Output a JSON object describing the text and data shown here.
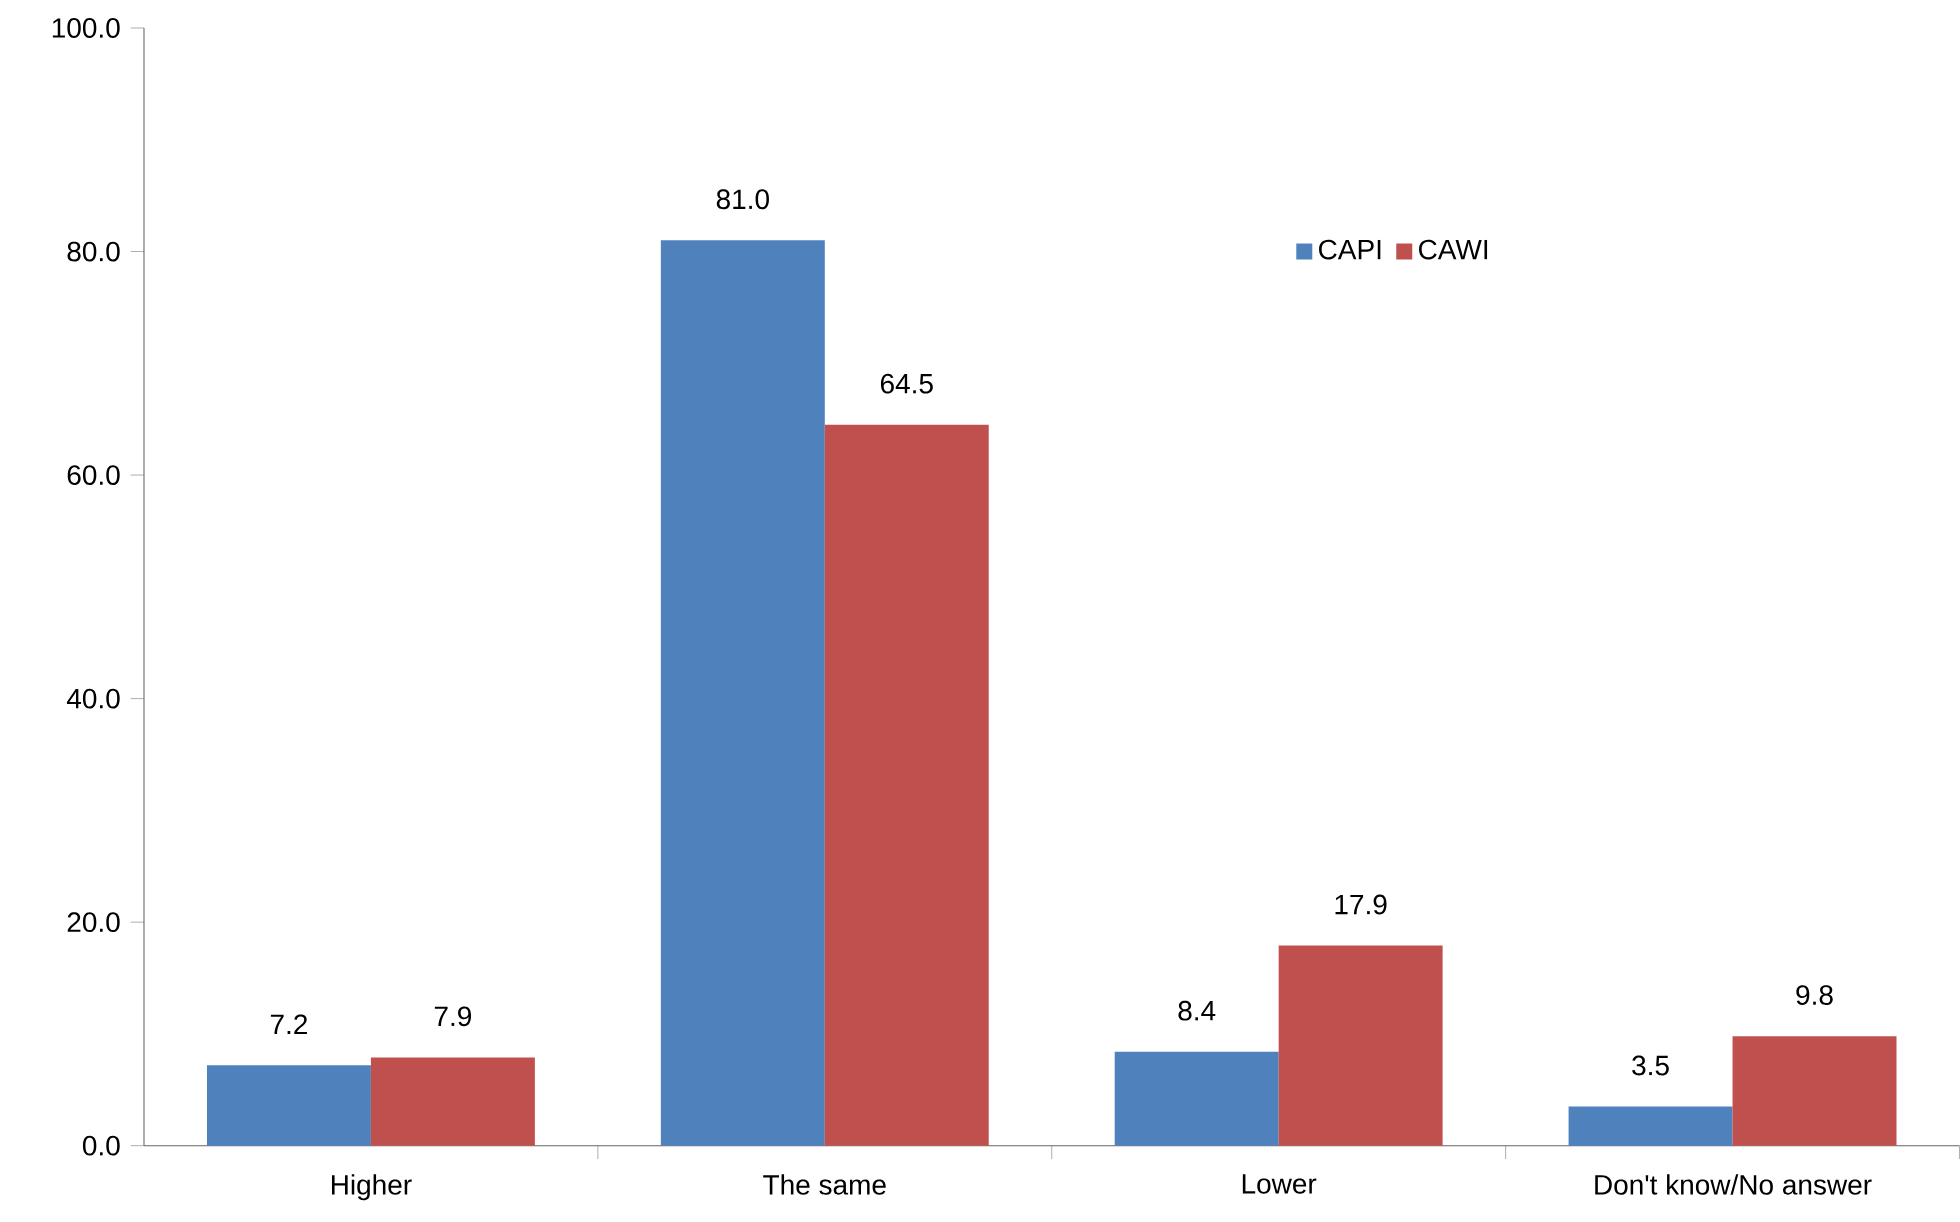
{
  "chart_data": {
    "type": "bar",
    "categories": [
      "Higher",
      "The same",
      "Lower",
      "Don't know/No answer"
    ],
    "series": [
      {
        "name": "CAPI",
        "color": "#4f81bd",
        "values": [
          7.2,
          81.0,
          8.4,
          3.5
        ],
        "value_labels": [
          "7.2",
          "81.0",
          "8.4",
          "3.5"
        ]
      },
      {
        "name": "CAWI",
        "color": "#c0504d",
        "values": [
          7.9,
          64.5,
          17.9,
          9.8
        ],
        "value_labels": [
          "7.9",
          "64.5",
          "17.9",
          "9.8"
        ]
      }
    ],
    "ylim": [
      0,
      100
    ],
    "yticks": [
      {
        "value": 0,
        "label": "0.0"
      },
      {
        "value": 20,
        "label": "20.0"
      },
      {
        "value": 40,
        "label": "40.0"
      },
      {
        "value": 60,
        "label": "60.0"
      },
      {
        "value": 80,
        "label": "80.0"
      },
      {
        "value": 100,
        "label": "100.0"
      }
    ],
    "grid": false,
    "legend": "top right"
  }
}
